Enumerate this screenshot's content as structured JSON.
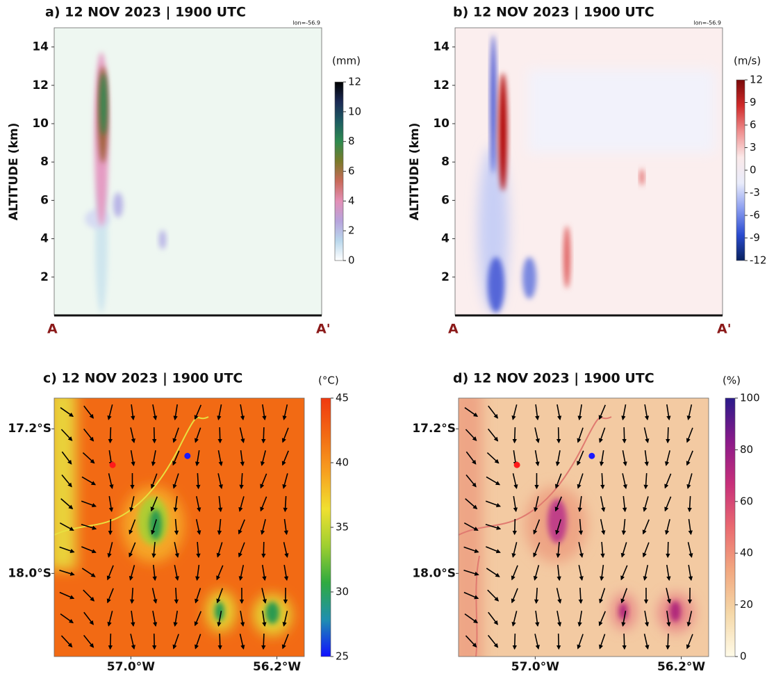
{
  "chart_data": [
    {
      "type": "cross-section",
      "title": "a) 12 NOV 2023 | 1900 UTC",
      "annotation": "lon=-56.9",
      "ylabel": "ALTITUDE (km)",
      "ylim": [
        0,
        15
      ],
      "yticks": [
        2,
        4,
        6,
        8,
        10,
        12,
        14
      ],
      "x_start_label": "A",
      "x_end_label": "A'",
      "colorbar": {
        "label": "(mm)",
        "lim": [
          0,
          12
        ],
        "ticks": [
          0,
          2,
          4,
          6,
          8,
          10,
          12
        ],
        "colors": [
          "#ffffff",
          "#b9d7ec",
          "#b7a3dc",
          "#e38fb6",
          "#c96a5a",
          "#7a7a2a",
          "#2e8a4f",
          "#1d5c62",
          "#1b2a55",
          "#000000"
        ]
      }
    },
    {
      "type": "cross-section",
      "title": "b) 12 NOV 2023 | 1900 UTC",
      "annotation": "lon=-56.9",
      "ylabel": "ALTITUDE (km)",
      "ylim": [
        0,
        15
      ],
      "yticks": [
        2,
        4,
        6,
        8,
        10,
        12,
        14
      ],
      "x_start_label": "A",
      "x_end_label": "A'",
      "colorbar": {
        "label": "(m/s)",
        "lim": [
          -12,
          12
        ],
        "ticks": [
          -12,
          -9,
          -6,
          -3,
          0,
          3,
          6,
          9,
          12
        ],
        "colors": [
          "#08215e",
          "#2a4bd0",
          "#8a9df0",
          "#e9ecfb",
          "#fbe9e9",
          "#ef8f8f",
          "#d02a2a",
          "#7a0a0a"
        ]
      }
    },
    {
      "type": "map",
      "title": "c) 12 NOV 2023 | 1900 UTC",
      "xlim": [
        -57.42,
        -56.05
      ],
      "xticks": [
        {
          "value": -57.0,
          "label": "57.0°W"
        },
        {
          "value": -56.2,
          "label": "56.2°W"
        }
      ],
      "ylim": [
        -18.46,
        -17.03
      ],
      "yticks": [
        {
          "value": -18.0,
          "label": "18.0°S"
        },
        {
          "value": -17.2,
          "label": "17.2°S"
        }
      ],
      "points": [
        {
          "x": -57.1,
          "y": -17.4,
          "color": "#ff1a1a"
        },
        {
          "x": -56.69,
          "y": -17.35,
          "color": "#1a1aff"
        }
      ],
      "colorbar": {
        "label": "(°C)",
        "lim": [
          25,
          45
        ],
        "ticks": [
          25,
          30,
          35,
          40,
          45
        ],
        "colors": [
          "#1010ff",
          "#1f8fb0",
          "#2faa40",
          "#9fcf30",
          "#f0e030",
          "#f7a020",
          "#f26a14",
          "#f03a10"
        ]
      }
    },
    {
      "type": "map",
      "title": "d) 12 NOV 2023 | 1900 UTC",
      "xlim": [
        -57.42,
        -56.05
      ],
      "xticks": [
        {
          "value": -57.0,
          "label": "57.0°W"
        },
        {
          "value": -56.2,
          "label": "56.2°W"
        }
      ],
      "ylim": [
        -18.46,
        -17.03
      ],
      "yticks": [
        {
          "value": -18.0,
          "label": "18.0°S"
        },
        {
          "value": -17.2,
          "label": "17.2°S"
        }
      ],
      "points": [
        {
          "x": -57.1,
          "y": -17.4,
          "color": "#ff1a1a"
        },
        {
          "x": -56.69,
          "y": -17.35,
          "color": "#1a1aff"
        }
      ],
      "colorbar": {
        "label": "(%)",
        "lim": [
          0,
          100
        ],
        "ticks": [
          0,
          20,
          40,
          60,
          80,
          100
        ],
        "colors": [
          "#fffbe8",
          "#f5d8a8",
          "#f2a880",
          "#ea6a70",
          "#c8307a",
          "#8a1a8a",
          "#2a1a8a"
        ]
      }
    }
  ]
}
